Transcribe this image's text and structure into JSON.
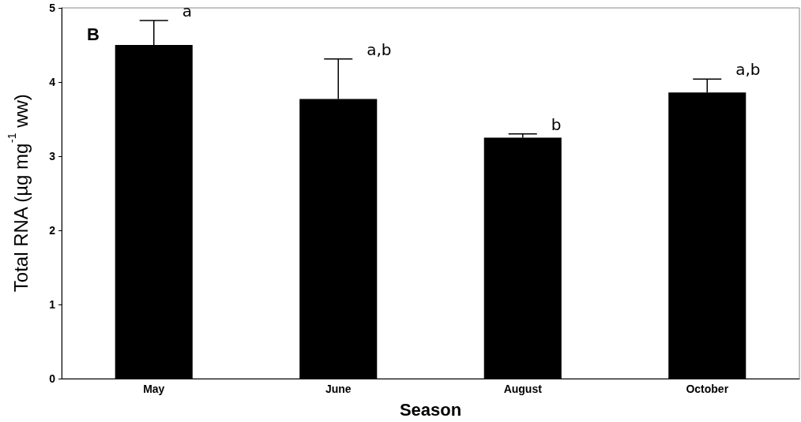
{
  "chart_data": {
    "type": "bar",
    "xlabel": "Season",
    "ylabel": "Total RNA (µg mg$^{-1}$ ww)",
    "categories": [
      "May",
      "June",
      "August",
      "October"
    ],
    "values": [
      4.5,
      3.77,
      3.25,
      3.86
    ],
    "errors": [
      [
        4.5,
        4.83
      ],
      [
        3.77,
        4.31
      ],
      [
        3.25,
        3.3
      ],
      [
        3.86,
        4.04
      ]
    ],
    "color": "#000000",
    "ylim": [
      0,
      5
    ],
    "yticks": [
      0,
      1,
      2,
      3,
      4,
      5
    ],
    "grid": false,
    "annotations": [
      "B",
      {
        "text": "a",
        "x": "May",
        "y": 4.83
      },
      {
        "text": "a,b",
        "x": "June",
        "y": 4.31
      },
      {
        "text": "b",
        "x": "August",
        "y": 3.3
      },
      {
        "text": "a,b",
        "x": "October",
        "y": 4.04
      }
    ]
  }
}
